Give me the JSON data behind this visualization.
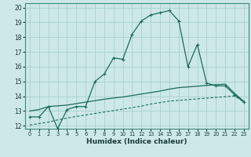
{
  "xlabel": "Humidex (Indice chaleur)",
  "xlim": [
    -0.5,
    23.5
  ],
  "ylim": [
    11.8,
    20.3
  ],
  "yticks": [
    12,
    13,
    14,
    15,
    16,
    17,
    18,
    19,
    20
  ],
  "xticks": [
    0,
    1,
    2,
    3,
    4,
    5,
    6,
    7,
    8,
    9,
    10,
    11,
    12,
    13,
    14,
    15,
    16,
    17,
    18,
    19,
    20,
    21,
    22,
    23
  ],
  "bg_color": "#cde8e8",
  "grid_color": "#a8d0d0",
  "line_color": "#1a6b5a",
  "line1_x": [
    0,
    1,
    2,
    3,
    4,
    5,
    6,
    7,
    8,
    9,
    10,
    11,
    12,
    13,
    14,
    15,
    16,
    17,
    18,
    19,
    20,
    21,
    22,
    23
  ],
  "line1_y": [
    12.6,
    12.6,
    13.3,
    11.8,
    13.1,
    13.3,
    13.3,
    15.0,
    15.5,
    16.6,
    16.5,
    18.2,
    19.1,
    19.5,
    19.65,
    19.8,
    19.1,
    16.0,
    17.5,
    14.9,
    14.7,
    14.7,
    14.1,
    13.6
  ],
  "line2_x": [
    0,
    1,
    2,
    3,
    4,
    5,
    6,
    7,
    8,
    9,
    10,
    11,
    12,
    13,
    14,
    15,
    16,
    17,
    18,
    19,
    20,
    21,
    22,
    23
  ],
  "line2_y": [
    13.0,
    13.1,
    13.3,
    13.35,
    13.4,
    13.5,
    13.6,
    13.7,
    13.8,
    13.88,
    13.95,
    14.05,
    14.15,
    14.25,
    14.35,
    14.48,
    14.58,
    14.63,
    14.68,
    14.73,
    14.78,
    14.82,
    14.2,
    13.65
  ],
  "line3_x": [
    0,
    1,
    2,
    3,
    4,
    5,
    6,
    7,
    8,
    9,
    10,
    11,
    12,
    13,
    14,
    15,
    16,
    17,
    18,
    19,
    20,
    21,
    22,
    23
  ],
  "line3_y": [
    12.05,
    12.15,
    12.25,
    12.4,
    12.52,
    12.63,
    12.73,
    12.83,
    12.93,
    13.03,
    13.13,
    13.23,
    13.33,
    13.47,
    13.57,
    13.67,
    13.72,
    13.77,
    13.82,
    13.87,
    13.92,
    13.97,
    14.02,
    13.62
  ]
}
